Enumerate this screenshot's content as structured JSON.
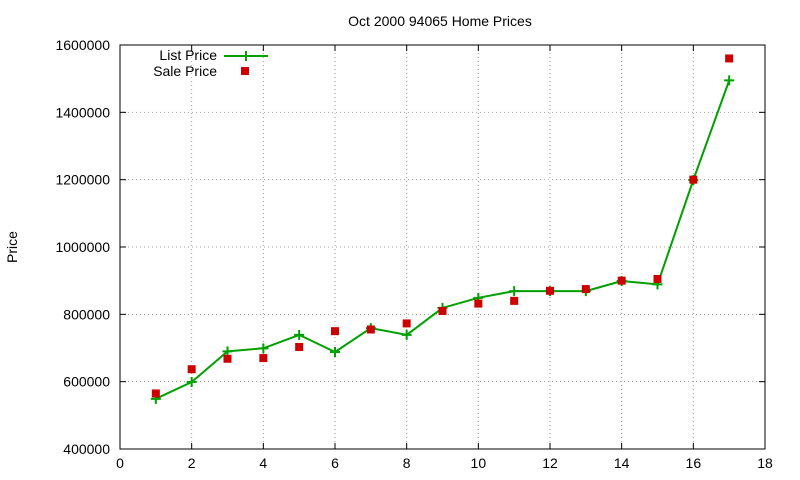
{
  "chart_data": {
    "type": "line",
    "title": "Oct 2000 94065 Home Prices",
    "xlabel": "",
    "ylabel": "Price",
    "xlim": [
      0,
      18
    ],
    "ylim": [
      400000,
      1600000
    ],
    "x_ticks": [
      0,
      2,
      4,
      6,
      8,
      10,
      12,
      14,
      16,
      18
    ],
    "y_ticks": [
      400000,
      600000,
      800000,
      1000000,
      1200000,
      1400000,
      1600000
    ],
    "grid": true,
    "legend_position": "top-left",
    "series": [
      {
        "name": "List Price",
        "style": "line-with-plus-markers",
        "color": "#00a000",
        "x": [
          1,
          2,
          3,
          4,
          5,
          6,
          7,
          8,
          9,
          10,
          11,
          12,
          13,
          14,
          15,
          16,
          17
        ],
        "y": [
          549000,
          599000,
          690000,
          699000,
          739000,
          688000,
          759000,
          739000,
          819000,
          849000,
          869000,
          869000,
          869000,
          899000,
          889000,
          1199000,
          1495000
        ]
      },
      {
        "name": "Sale Price",
        "style": "square-markers",
        "color": "#cc0000",
        "x": [
          1,
          2,
          3,
          4,
          5,
          6,
          7,
          8,
          9,
          10,
          11,
          12,
          13,
          14,
          15,
          16,
          17
        ],
        "y": [
          565000,
          637000,
          668000,
          670000,
          703000,
          750000,
          755000,
          773000,
          810000,
          832000,
          840000,
          870000,
          875000,
          900000,
          905000,
          1200000,
          1560000
        ]
      }
    ]
  }
}
